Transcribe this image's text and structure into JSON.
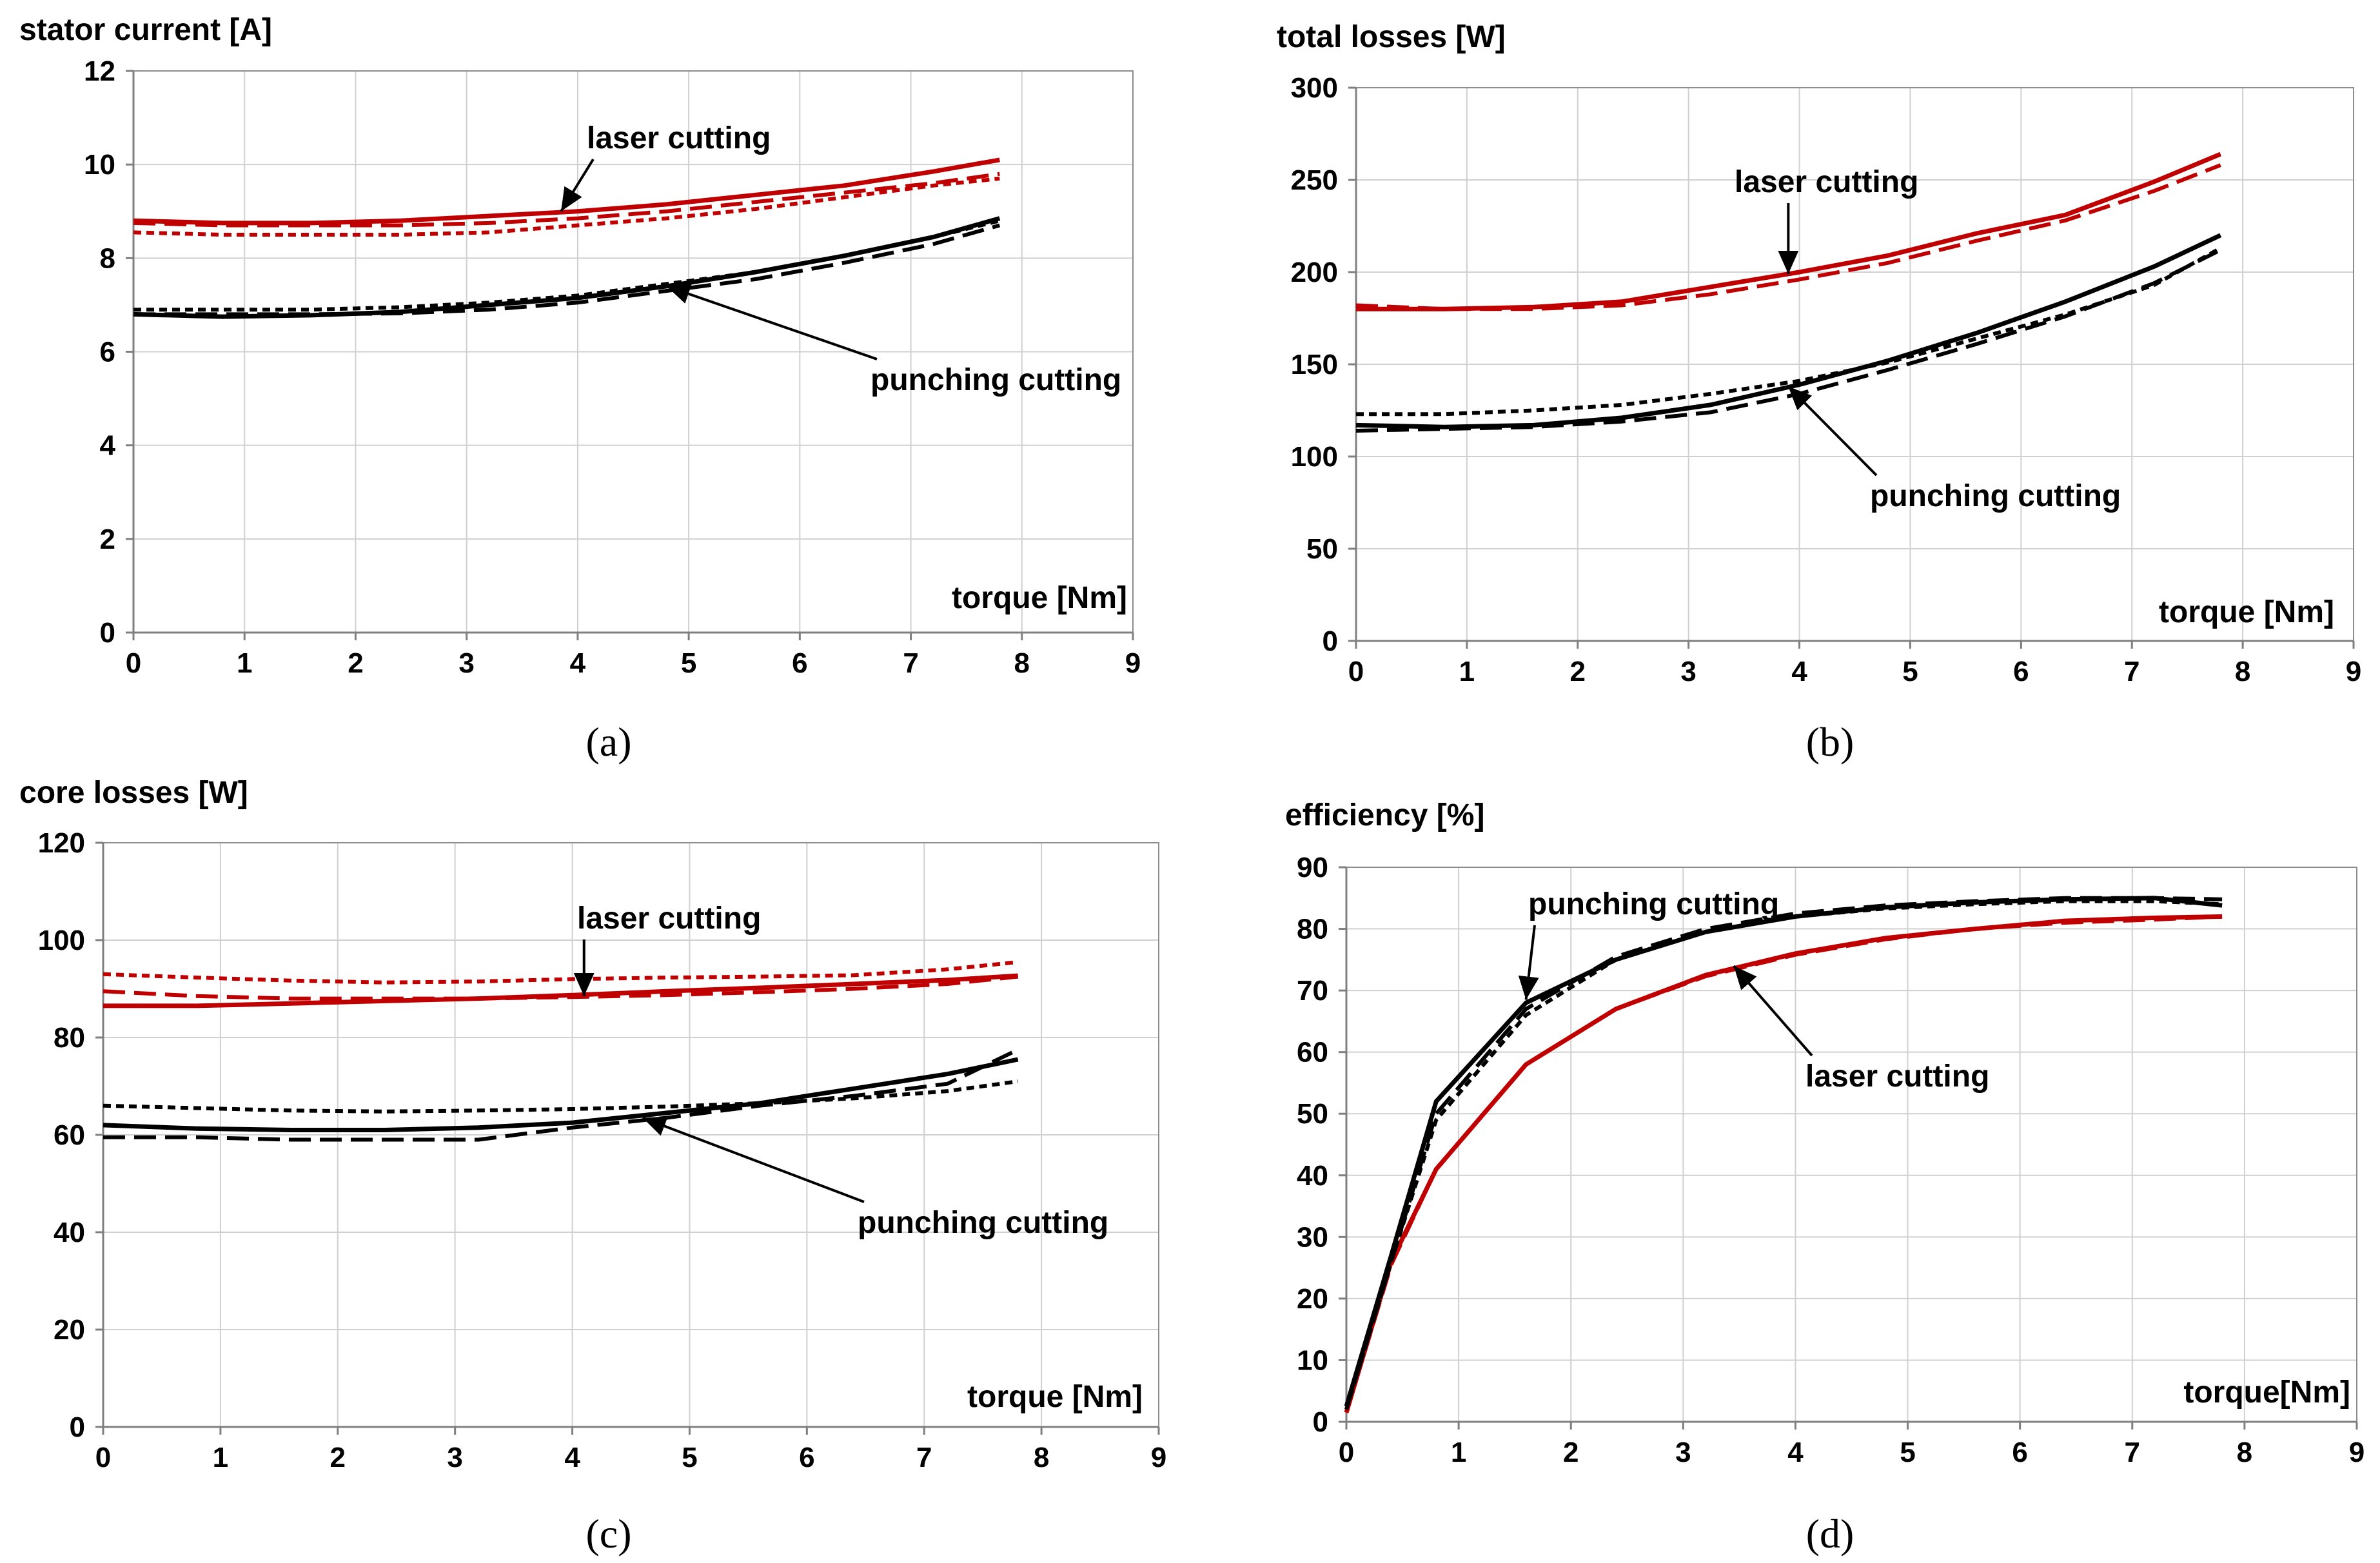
{
  "chart_data": [
    {
      "id": "a",
      "type": "line",
      "ylabel": "stator current [A]",
      "xlabel": "torque [Nm]",
      "caption": "(a)",
      "xlim": [
        0,
        9
      ],
      "ylim": [
        0,
        12
      ],
      "xticks": [
        "0",
        "1",
        "2",
        "3",
        "4",
        "5",
        "6",
        "7",
        "8",
        "9"
      ],
      "yticks": [
        "0",
        "2",
        "4",
        "6",
        "8",
        "10",
        "12"
      ],
      "annotations": [
        {
          "text": "laser cutting",
          "target": [
            3.85,
            9.0
          ]
        },
        {
          "text": "punching cutting",
          "target": [
            4.8,
            7.4
          ]
        }
      ],
      "series": [
        {
          "name": "laser cutting (solid)",
          "color": "#c00000",
          "style": "solid",
          "x": [
            0,
            0.8,
            1.6,
            2.4,
            3.2,
            4,
            4.8,
            5.6,
            6.4,
            7.2,
            7.8
          ],
          "y": [
            8.8,
            8.75,
            8.75,
            8.8,
            8.9,
            9.0,
            9.15,
            9.35,
            9.55,
            9.85,
            10.1
          ]
        },
        {
          "name": "laser cutting (dashed)",
          "color": "#c00000",
          "style": "dashed",
          "x": [
            0,
            0.8,
            1.6,
            2.4,
            3.2,
            4,
            4.8,
            5.6,
            6.4,
            7.2,
            7.8
          ],
          "y": [
            8.75,
            8.7,
            8.7,
            8.7,
            8.75,
            8.85,
            9.0,
            9.2,
            9.4,
            9.6,
            9.8
          ]
        },
        {
          "name": "laser cutting (dotted)",
          "color": "#c00000",
          "style": "dotted",
          "x": [
            0,
            0.8,
            1.6,
            2.4,
            3.2,
            4,
            4.8,
            5.6,
            6.4,
            7.2,
            7.8
          ],
          "y": [
            8.55,
            8.5,
            8.5,
            8.5,
            8.55,
            8.7,
            8.85,
            9.05,
            9.3,
            9.55,
            9.7
          ]
        },
        {
          "name": "punching cutting (solid)",
          "color": "#000000",
          "style": "solid",
          "x": [
            0,
            0.8,
            1.6,
            2.4,
            3.2,
            4,
            4.8,
            5.6,
            6.4,
            7.2,
            7.8
          ],
          "y": [
            6.8,
            6.75,
            6.78,
            6.85,
            7.0,
            7.15,
            7.4,
            7.7,
            8.05,
            8.45,
            8.85
          ]
        },
        {
          "name": "punching cutting (dashed)",
          "color": "#000000",
          "style": "dashed",
          "x": [
            0,
            0.8,
            1.6,
            2.4,
            3.2,
            4,
            4.8,
            5.6,
            6.4,
            7.2,
            7.8
          ],
          "y": [
            6.8,
            6.8,
            6.8,
            6.82,
            6.9,
            7.05,
            7.3,
            7.55,
            7.9,
            8.3,
            8.7
          ]
        },
        {
          "name": "punching cutting (dotted)",
          "color": "#000000",
          "style": "dotted",
          "x": [
            0,
            0.8,
            1.6,
            2.4,
            3.2,
            4,
            4.8,
            5.6,
            6.4,
            7.2,
            7.8
          ],
          "y": [
            6.9,
            6.9,
            6.9,
            6.95,
            7.05,
            7.2,
            7.45,
            7.7,
            8.05,
            8.45,
            8.8
          ]
        }
      ]
    },
    {
      "id": "b",
      "type": "line",
      "ylabel": "total losses [W]",
      "xlabel": "torque [Nm]",
      "caption": "(b)",
      "xlim": [
        0,
        9
      ],
      "ylim": [
        0,
        300
      ],
      "xticks": [
        "0",
        "1",
        "2",
        "3",
        "4",
        "5",
        "6",
        "7",
        "8",
        "9"
      ],
      "yticks": [
        "0",
        "50",
        "100",
        "150",
        "200",
        "250",
        "300"
      ],
      "annotations": [
        {
          "text": "laser cutting",
          "target": [
            3.9,
            199
          ]
        },
        {
          "text": "punching cutting",
          "target": [
            3.9,
            138
          ]
        }
      ],
      "series": [
        {
          "name": "laser cutting (solid)",
          "color": "#c00000",
          "style": "solid",
          "x": [
            0,
            0.8,
            1.6,
            2.4,
            3.2,
            4,
            4.8,
            5.6,
            6.4,
            7.2,
            7.8
          ],
          "y": [
            180,
            180,
            181,
            184,
            192,
            200,
            209,
            221,
            231,
            249,
            264
          ]
        },
        {
          "name": "laser cutting (dashed)",
          "color": "#c00000",
          "style": "dashed",
          "x": [
            0,
            0.8,
            1.6,
            2.4,
            3.2,
            4,
            4.8,
            5.6,
            6.4,
            7.2,
            7.8
          ],
          "y": [
            182,
            180,
            180,
            182,
            188,
            196,
            205,
            217,
            228,
            244,
            258
          ]
        },
        {
          "name": "punching cutting (solid)",
          "color": "#000000",
          "style": "solid",
          "x": [
            0,
            0.8,
            1.6,
            2.4,
            3.2,
            4,
            4.8,
            5.6,
            6.4,
            7.2,
            7.8
          ],
          "y": [
            117,
            116,
            117,
            121,
            128,
            139,
            152,
            167,
            184,
            203,
            220
          ]
        },
        {
          "name": "punching cutting (dashed)",
          "color": "#000000",
          "style": "dashed",
          "x": [
            0,
            0.8,
            1.6,
            2.4,
            3.2,
            4,
            4.8,
            5.6,
            6.4,
            7.2,
            7.8
          ],
          "y": [
            114,
            115,
            116,
            119,
            124,
            134,
            147,
            161,
            176,
            194,
            212
          ]
        },
        {
          "name": "punching cutting (dotted)",
          "color": "#000000",
          "style": "dotted",
          "x": [
            0,
            0.8,
            1.6,
            2.4,
            3.2,
            4,
            4.8,
            5.6,
            6.4,
            7.2,
            7.8
          ],
          "y": [
            123,
            123,
            125,
            128,
            134,
            141,
            151,
            164,
            177,
            193,
            213
          ]
        }
      ]
    },
    {
      "id": "c",
      "type": "line",
      "ylabel": "core losses [W]",
      "xlabel": "torque [Nm]",
      "caption": "(c)",
      "xlim": [
        0,
        9
      ],
      "ylim": [
        0,
        120
      ],
      "xticks": [
        "0",
        "1",
        "2",
        "3",
        "4",
        "5",
        "6",
        "7",
        "8",
        "9"
      ],
      "yticks": [
        "0",
        "20",
        "40",
        "60",
        "80",
        "100",
        "120"
      ],
      "annotations": [
        {
          "text": "laser cutting",
          "target": [
            4.1,
            88.5
          ]
        },
        {
          "text": "punching cutting",
          "target": [
            4.6,
            63.5
          ]
        }
      ],
      "series": [
        {
          "name": "laser cutting (solid)",
          "color": "#c00000",
          "style": "solid",
          "x": [
            0,
            0.8,
            1.6,
            2.4,
            3.2,
            4,
            4.8,
            5.6,
            6.4,
            7.2,
            7.8
          ],
          "y": [
            86.5,
            86.5,
            87,
            87.5,
            88,
            88.7,
            89.5,
            90.2,
            91,
            91.8,
            92.7
          ]
        },
        {
          "name": "laser cutting (dashed)",
          "color": "#c00000",
          "style": "dashed",
          "x": [
            0,
            0.8,
            1.6,
            2.4,
            3.2,
            4,
            4.8,
            5.6,
            6.4,
            7.2,
            7.8
          ],
          "y": [
            89.5,
            88.5,
            88,
            88,
            88,
            88.3,
            88.7,
            89.3,
            90,
            91,
            92.5
          ]
        },
        {
          "name": "laser cutting (dotted)",
          "color": "#c00000",
          "style": "dotted",
          "x": [
            0,
            0.8,
            1.6,
            2.4,
            3.2,
            4,
            4.8,
            5.6,
            6.4,
            7.2,
            7.8
          ],
          "y": [
            93,
            92.3,
            91.7,
            91.3,
            91.5,
            92,
            92.3,
            92.5,
            92.8,
            94,
            95.5
          ]
        },
        {
          "name": "punching cutting (solid)",
          "color": "#000000",
          "style": "solid",
          "x": [
            0,
            0.8,
            1.6,
            2.4,
            3.2,
            4,
            4.8,
            5.6,
            6.4,
            7.2,
            7.8
          ],
          "y": [
            62,
            61.3,
            61,
            61,
            61.5,
            62.5,
            64.5,
            66.5,
            69.5,
            72.5,
            75.5
          ]
        },
        {
          "name": "punching cutting (dashed)",
          "color": "#000000",
          "style": "dashed",
          "x": [
            0,
            0.8,
            1.6,
            2.4,
            3.2,
            4,
            4.8,
            5.6,
            6.4,
            7.2,
            7.8
          ],
          "y": [
            59.5,
            59.5,
            59,
            59,
            59,
            61.5,
            63.5,
            66,
            68,
            70.5,
            77.5
          ]
        },
        {
          "name": "punching cutting (dotted)",
          "color": "#000000",
          "style": "dotted",
          "x": [
            0,
            0.8,
            1.6,
            2.4,
            3.2,
            4,
            4.8,
            5.6,
            6.4,
            7.2,
            7.8
          ],
          "y": [
            66,
            65.5,
            65,
            64.8,
            65,
            65.3,
            65.8,
            66.5,
            67.5,
            69,
            71
          ]
        }
      ]
    },
    {
      "id": "d",
      "type": "line",
      "ylabel": "efficiency [%]",
      "xlabel": "torque[Nm]",
      "caption": "(d)",
      "xlim": [
        0,
        9
      ],
      "ylim": [
        0,
        90
      ],
      "xticks": [
        "0",
        "1",
        "2",
        "3",
        "4",
        "5",
        "6",
        "7",
        "8",
        "9"
      ],
      "yticks": [
        "0",
        "10",
        "20",
        "30",
        "40",
        "50",
        "60",
        "70",
        "80",
        "90"
      ],
      "annotations": [
        {
          "text": "punching cutting",
          "target": [
            1.6,
            68.5
          ]
        },
        {
          "text": "laser cutting",
          "target": [
            3.45,
            74
          ]
        }
      ],
      "series": [
        {
          "name": "laser cutting (solid)",
          "color": "#c00000",
          "style": "solid",
          "x": [
            0,
            0.4,
            0.8,
            1.6,
            2.4,
            3.2,
            4,
            4.8,
            5.6,
            6.4,
            7.2,
            7.8
          ],
          "y": [
            1.5,
            26,
            41,
            58,
            67,
            72.5,
            76,
            78.5,
            80,
            81.3,
            81.8,
            82
          ]
        },
        {
          "name": "laser cutting (dashed)",
          "color": "#c00000",
          "style": "dashed",
          "x": [
            0,
            0.4,
            0.8,
            1.6,
            2.4,
            3.2,
            4,
            4.8,
            5.6,
            6.4,
            7.2,
            7.8
          ],
          "y": [
            1.5,
            25.5,
            41,
            58,
            67,
            72.3,
            75.8,
            78.3,
            80,
            81,
            81.5,
            82
          ]
        },
        {
          "name": "punching cutting (solid)",
          "color": "#000000",
          "style": "solid",
          "x": [
            0,
            0.4,
            0.8,
            1.6,
            2.4,
            3.2,
            4,
            4.8,
            5.6,
            6.4,
            7.2,
            7.8
          ],
          "y": [
            2.5,
            27,
            52,
            68,
            75,
            79.5,
            82,
            83.5,
            84.3,
            84.8,
            85,
            83.8
          ]
        },
        {
          "name": "punching cutting (dashed)",
          "color": "#000000",
          "style": "dashed",
          "x": [
            0,
            0.4,
            0.8,
            1.6,
            2.4,
            3.2,
            4,
            4.8,
            5.6,
            6.4,
            7.2,
            7.8
          ],
          "y": [
            2,
            26,
            50,
            67,
            75.5,
            80,
            82.5,
            83.8,
            84.5,
            85,
            85,
            84.8
          ]
        },
        {
          "name": "punching cutting (dotted)",
          "color": "#000000",
          "style": "dotted",
          "x": [
            0,
            0.4,
            0.8,
            1.6,
            2.4,
            3.2,
            4,
            4.8,
            5.6,
            6.4,
            7.2,
            7.8
          ],
          "y": [
            2,
            26,
            49,
            66,
            75,
            79.5,
            82,
            83.3,
            84,
            84.5,
            84.5,
            84
          ]
        }
      ]
    }
  ]
}
